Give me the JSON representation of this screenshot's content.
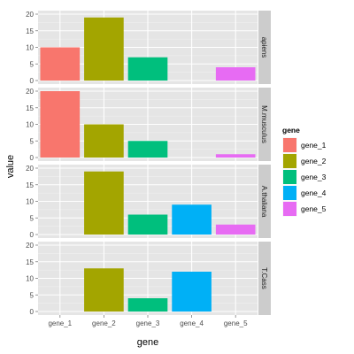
{
  "chart_data": {
    "type": "bar",
    "xlabel": "gene",
    "ylabel": "value",
    "categories": [
      "gene_1",
      "gene_2",
      "gene_3",
      "gene_4",
      "gene_5"
    ],
    "ylim": [
      0,
      20
    ],
    "yticks": [
      0,
      5,
      10,
      15,
      20
    ],
    "grid": true,
    "legend": {
      "title": "gene",
      "placement": "right",
      "entries": [
        {
          "label": "gene_1",
          "color": "#F8766D"
        },
        {
          "label": "gene_2",
          "color": "#A3A500"
        },
        {
          "label": "gene_3",
          "color": "#00BF7D"
        },
        {
          "label": "gene_4",
          "color": "#00B0F6"
        },
        {
          "label": "gene_5",
          "color": "#E76BF3"
        }
      ]
    },
    "facets": [
      {
        "label": "apiens",
        "values": [
          10,
          19,
          7,
          0,
          4
        ]
      },
      {
        "label": "M.musculus",
        "values": [
          20,
          10,
          5,
          0,
          1
        ]
      },
      {
        "label": "A.thaliana",
        "values": [
          0,
          19,
          6,
          9,
          3
        ]
      },
      {
        "label": "T.Cass",
        "values": [
          0,
          13,
          4,
          12,
          0
        ]
      }
    ]
  }
}
